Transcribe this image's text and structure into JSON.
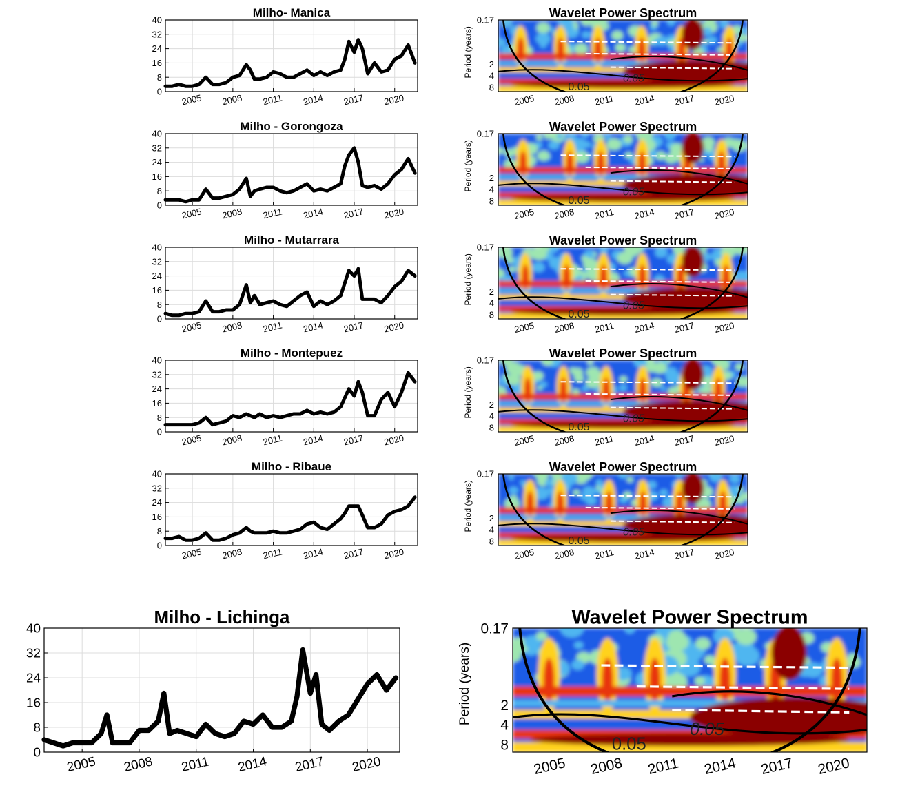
{
  "figure": {
    "series_title_prefix": "Milho",
    "wavelet_title": "Wavelet Power Spectrum",
    "period_axis_label": "Period (years)",
    "period_ticks": [
      "0.17",
      "2",
      "4",
      "8"
    ],
    "year_ticks": [
      "2005",
      "2008",
      "2011",
      "2014",
      "2017",
      "2020"
    ],
    "price_ticks": [
      "0",
      "8",
      "16",
      "24",
      "32",
      "40"
    ],
    "significance_label": "0.05"
  },
  "chart_data": [
    {
      "type": "line",
      "title": "Milho- Manica",
      "ylim": [
        0,
        40
      ],
      "x_range": [
        2003,
        2021.7
      ],
      "x": [
        2003.0,
        2003.5,
        2004.0,
        2004.5,
        2005.0,
        2005.5,
        2006.0,
        2006.5,
        2007.0,
        2007.5,
        2008.0,
        2008.5,
        2009.0,
        2009.3,
        2009.6,
        2010.0,
        2010.5,
        2011.0,
        2011.5,
        2012.0,
        2012.5,
        2013.0,
        2013.5,
        2014.0,
        2014.5,
        2015.0,
        2015.5,
        2016.0,
        2016.3,
        2016.6,
        2017.0,
        2017.3,
        2017.6,
        2018.0,
        2018.5,
        2019.0,
        2019.5,
        2020.0,
        2020.5,
        2021.0,
        2021.5
      ],
      "y": [
        3,
        3,
        4,
        3,
        3,
        4,
        8,
        4,
        4,
        5,
        8,
        9,
        15,
        12,
        7,
        7,
        8,
        11,
        10,
        8,
        8,
        10,
        12,
        9,
        11,
        9,
        11,
        12,
        18,
        28,
        22,
        29,
        24,
        10,
        16,
        11,
        12,
        18,
        20,
        26,
        16
      ]
    },
    {
      "type": "line",
      "title": "Milho - Gorongoza",
      "ylim": [
        0,
        40
      ],
      "x_range": [
        2003,
        2021.7
      ],
      "x": [
        2003.0,
        2003.5,
        2004.0,
        2004.5,
        2005.0,
        2005.5,
        2006.0,
        2006.5,
        2007.0,
        2007.5,
        2008.0,
        2008.5,
        2009.0,
        2009.3,
        2009.6,
        2010.0,
        2010.5,
        2011.0,
        2011.5,
        2012.0,
        2012.5,
        2013.0,
        2013.5,
        2014.0,
        2014.5,
        2015.0,
        2015.5,
        2016.0,
        2016.3,
        2016.6,
        2017.0,
        2017.3,
        2017.6,
        2018.0,
        2018.5,
        2019.0,
        2019.5,
        2020.0,
        2020.5,
        2021.0,
        2021.5
      ],
      "y": [
        3,
        3,
        3,
        2,
        3,
        3,
        9,
        4,
        4,
        5,
        6,
        9,
        15,
        5,
        8,
        9,
        10,
        10,
        8,
        7,
        8,
        10,
        12,
        8,
        9,
        8,
        10,
        12,
        22,
        28,
        32,
        24,
        11,
        10,
        11,
        9,
        12,
        17,
        20,
        26,
        18
      ]
    },
    {
      "type": "line",
      "title": "Milho - Mutarrara",
      "ylim": [
        0,
        40
      ],
      "x_range": [
        2003,
        2021.7
      ],
      "x": [
        2003.0,
        2003.5,
        2004.0,
        2004.5,
        2005.0,
        2005.5,
        2006.0,
        2006.5,
        2007.0,
        2007.5,
        2008.0,
        2008.5,
        2009.0,
        2009.3,
        2009.6,
        2010.0,
        2010.5,
        2011.0,
        2011.5,
        2012.0,
        2012.5,
        2013.0,
        2013.5,
        2014.0,
        2014.5,
        2015.0,
        2015.5,
        2016.0,
        2016.3,
        2016.6,
        2017.0,
        2017.3,
        2017.6,
        2018.0,
        2018.5,
        2019.0,
        2019.5,
        2020.0,
        2020.5,
        2021.0,
        2021.5
      ],
      "y": [
        3,
        2,
        2,
        3,
        3,
        4,
        10,
        4,
        4,
        5,
        5,
        8,
        19,
        9,
        13,
        8,
        9,
        10,
        8,
        7,
        10,
        13,
        15,
        7,
        10,
        8,
        10,
        13,
        20,
        27,
        24,
        28,
        11,
        11,
        11,
        9,
        13,
        18,
        21,
        27,
        24
      ]
    },
    {
      "type": "line",
      "title": "Milho - Montepuez",
      "ylim": [
        0,
        40
      ],
      "x_range": [
        2003,
        2021.7
      ],
      "x": [
        2003.0,
        2003.5,
        2004.0,
        2004.5,
        2005.0,
        2005.5,
        2006.0,
        2006.5,
        2007.0,
        2007.5,
        2008.0,
        2008.5,
        2009.0,
        2009.3,
        2009.6,
        2010.0,
        2010.5,
        2011.0,
        2011.5,
        2012.0,
        2012.5,
        2013.0,
        2013.5,
        2014.0,
        2014.5,
        2015.0,
        2015.5,
        2016.0,
        2016.3,
        2016.6,
        2017.0,
        2017.3,
        2017.6,
        2018.0,
        2018.5,
        2019.0,
        2019.5,
        2020.0,
        2020.5,
        2021.0,
        2021.5
      ],
      "y": [
        4,
        4,
        4,
        4,
        4,
        5,
        8,
        4,
        5,
        6,
        9,
        8,
        10,
        9,
        8,
        10,
        8,
        9,
        8,
        9,
        10,
        10,
        12,
        10,
        11,
        10,
        11,
        14,
        19,
        24,
        20,
        28,
        22,
        9,
        9,
        18,
        22,
        14,
        22,
        33,
        28
      ]
    },
    {
      "type": "line",
      "title": "Milho - Ribaue",
      "ylim": [
        0,
        40
      ],
      "x_range": [
        2003,
        2021.7
      ],
      "x": [
        2003.0,
        2003.5,
        2004.0,
        2004.5,
        2005.0,
        2005.5,
        2006.0,
        2006.5,
        2007.0,
        2007.5,
        2008.0,
        2008.5,
        2009.0,
        2009.3,
        2009.6,
        2010.0,
        2010.5,
        2011.0,
        2011.5,
        2012.0,
        2012.5,
        2013.0,
        2013.5,
        2014.0,
        2014.5,
        2015.0,
        2015.5,
        2016.0,
        2016.3,
        2016.6,
        2017.0,
        2017.3,
        2017.6,
        2018.0,
        2018.5,
        2019.0,
        2019.5,
        2020.0,
        2020.5,
        2021.0,
        2021.5
      ],
      "y": [
        4,
        4,
        5,
        3,
        3,
        4,
        7,
        3,
        3,
        4,
        6,
        7,
        10,
        8,
        7,
        7,
        7,
        8,
        7,
        7,
        8,
        9,
        12,
        13,
        10,
        9,
        12,
        15,
        18,
        22,
        22,
        22,
        17,
        10,
        10,
        12,
        17,
        19,
        20,
        22,
        27
      ]
    },
    {
      "type": "line",
      "title": "Milho - Lichinga",
      "ylim": [
        0,
        40
      ],
      "x_range": [
        2003,
        2021.7
      ],
      "x": [
        2003.0,
        2003.5,
        2004.0,
        2004.5,
        2005.0,
        2005.5,
        2006.0,
        2006.3,
        2006.6,
        2007.0,
        2007.5,
        2008.0,
        2008.5,
        2009.0,
        2009.3,
        2009.6,
        2010.0,
        2010.5,
        2011.0,
        2011.5,
        2012.0,
        2012.5,
        2013.0,
        2013.5,
        2014.0,
        2014.5,
        2015.0,
        2015.5,
        2016.0,
        2016.3,
        2016.6,
        2017.0,
        2017.3,
        2017.6,
        2018.0,
        2018.5,
        2019.0,
        2019.5,
        2020.0,
        2020.5,
        2021.0,
        2021.5
      ],
      "y": [
        4,
        3,
        2,
        3,
        3,
        3,
        6,
        12,
        3,
        3,
        3,
        7,
        7,
        10,
        19,
        6,
        7,
        6,
        5,
        9,
        6,
        5,
        6,
        10,
        9,
        12,
        8,
        8,
        10,
        18,
        33,
        19,
        25,
        9,
        7,
        10,
        12,
        17,
        22,
        25,
        20,
        24
      ]
    }
  ],
  "wavelet_panels": [
    {
      "title": "Wavelet Power Spectrum"
    },
    {
      "title": "Wavelet Power Spectrum"
    },
    {
      "title": "Wavelet Power Spectrum"
    },
    {
      "title": "Wavelet Power Spectrum"
    },
    {
      "title": "Wavelet Power Spectrum"
    },
    {
      "title": "Wavelet Power Spectrum"
    }
  ],
  "colors": {
    "line": "#000000",
    "grid": "#dcdcdc",
    "cold": "#1e5be6",
    "cool": "#4fb6f0",
    "mid": "#9ee6b0",
    "warm": "#ffd21e",
    "hot": "#e8340e",
    "max": "#8b0000"
  }
}
